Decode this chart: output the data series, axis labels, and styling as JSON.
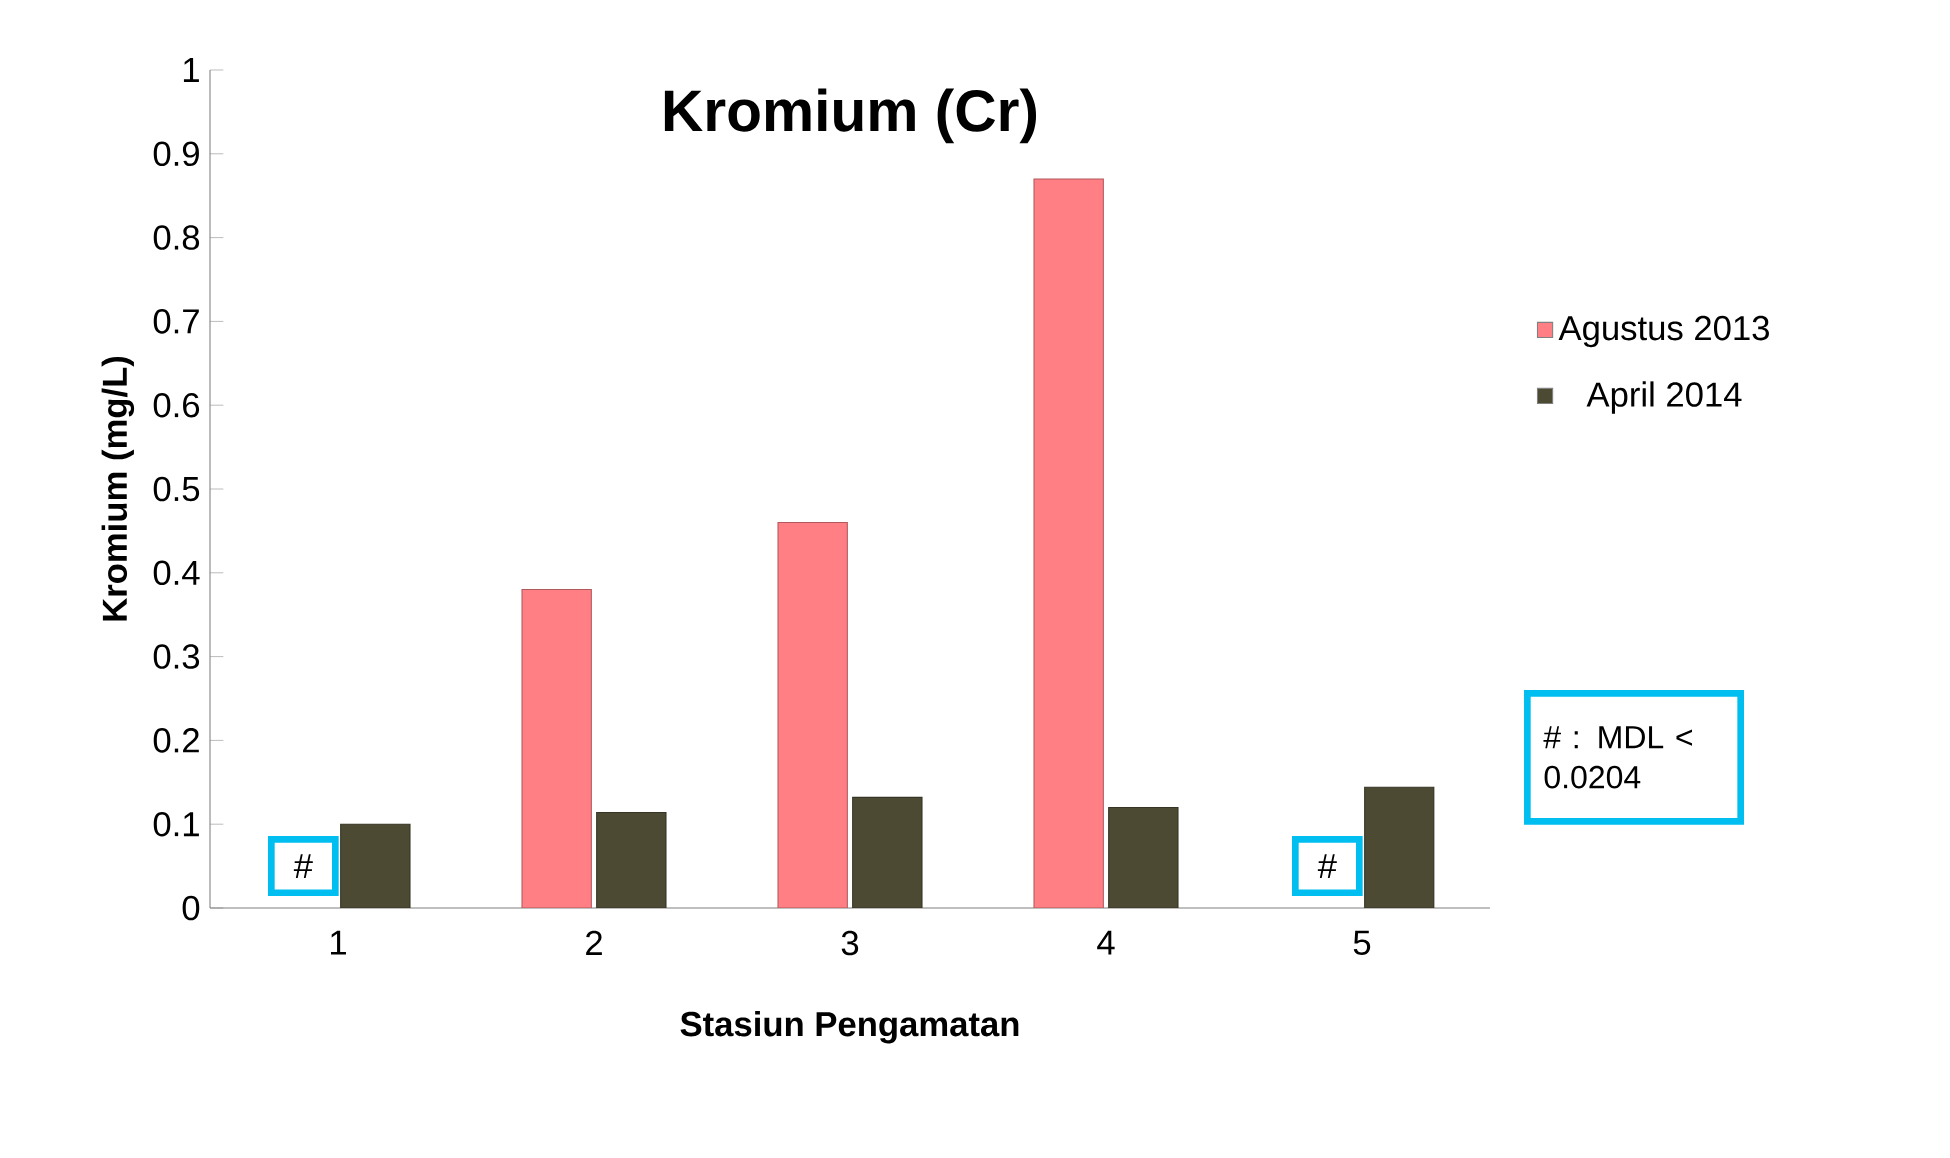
{
  "chart_data": {
    "type": "bar",
    "title": "Kromium (Cr)",
    "xlabel": "Stasiun Pengamatan",
    "ylabel": "Kromium (mg/L)",
    "categories": [
      "1",
      "2",
      "3",
      "4",
      "5"
    ],
    "series": [
      {
        "name": "Agustus 2013",
        "color": "#ff7f85",
        "values": [
          null,
          0.38,
          0.46,
          0.87,
          null
        ]
      },
      {
        "name": "April 2014",
        "color": "#4d4a33",
        "values": [
          0.1,
          0.114,
          0.132,
          0.12,
          0.144
        ]
      }
    ],
    "ylim": [
      0,
      1
    ],
    "yticks": [
      0,
      0.1,
      0.2,
      0.3,
      0.4,
      0.5,
      0.6,
      0.7,
      0.8,
      0.9,
      1
    ],
    "annotations": [
      {
        "text": "#",
        "x": "1",
        "y": 0.05
      },
      {
        "text": "#",
        "x": "5",
        "y": 0.05
      },
      "# : MDL < 0.0204"
    ],
    "legend": "right",
    "grid": false
  }
}
